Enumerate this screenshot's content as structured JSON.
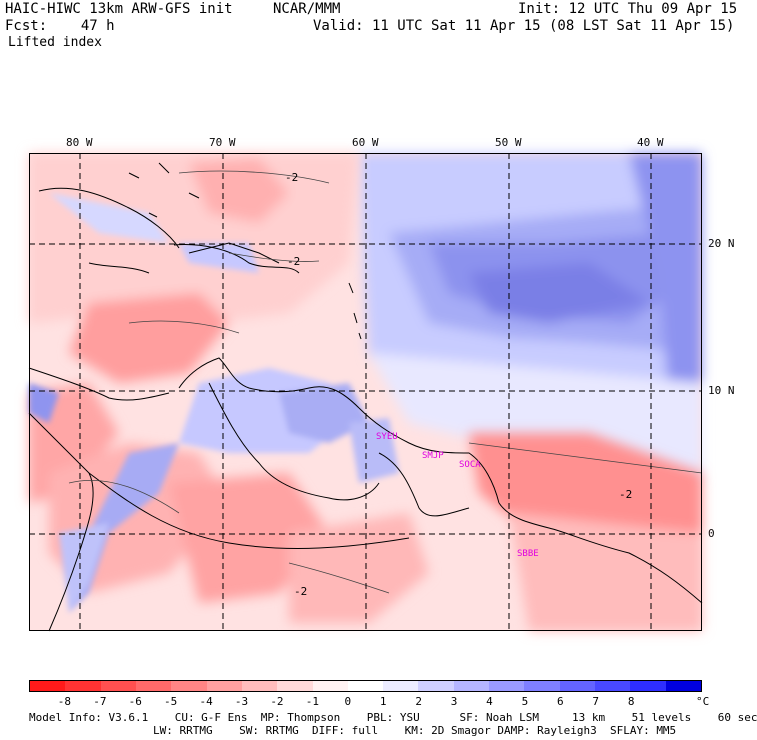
{
  "header": {
    "model": "HAIC-HIWC 13km ARW-GFS init",
    "center": "NCAR/MMM",
    "init": "Init: 12 UTC Thu 09 Apr 15",
    "fcst": "Fcst:    47 h",
    "valid": "Valid: 11 UTC Sat 11 Apr 15 (08 LST Sat 11 Apr 15)",
    "field": "Lifted index"
  },
  "axes": {
    "lon_labels": [
      "80 W",
      "70 W",
      "60 W",
      "50 W",
      "40 W"
    ],
    "lat_labels": [
      "20 N",
      "10 N",
      "0"
    ]
  },
  "stations": [
    "SYEU",
    "SMJP",
    "SOCA",
    "SBBE"
  ],
  "contour_labels": [
    "-2",
    "-2",
    "-2",
    "-2"
  ],
  "colorbar": {
    "colors": [
      "#ff1a1a",
      "#ff3333",
      "#ff5050",
      "#ff6a6a",
      "#ff8585",
      "#ffa0a0",
      "#ffbdbd",
      "#ffdada",
      "#fff2f2",
      "#ffffff",
      "#ececff",
      "#d0d0ff",
      "#b5b5ff",
      "#9a9aff",
      "#7f7fff",
      "#6464ff",
      "#4949ff",
      "#2e2eff",
      "#0000e0"
    ],
    "ticks": [
      "-8",
      "-7",
      "-6",
      "-5",
      "-4",
      "-3",
      "-2",
      "-1",
      "0",
      "1",
      "2",
      "3",
      "4",
      "5",
      "6",
      "7",
      "8"
    ],
    "unit": "°C"
  },
  "footer": {
    "line1": "Model Info: V3.6.1    CU: G-F Ens  MP: Thompson    PBL: YSU      SF: Noah LSM     13 km    51 levels    60 sec",
    "line2": "LW: RRTMG    SW: RRTMG  DIFF: full    KM: 2D Smagor DAMP: Rayleigh3  SFLAY: MM5"
  }
}
